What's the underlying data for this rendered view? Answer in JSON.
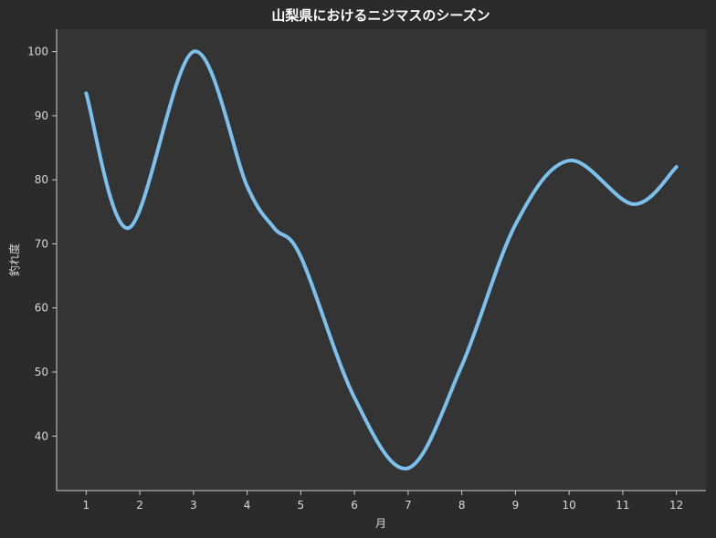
{
  "colors": {
    "page_background": "#2b2b2b",
    "plot_background": "#343434",
    "line": "#7cc1ee",
    "text": "#d8d8d8",
    "title": "#ffffff",
    "axis": "#cfcfcf"
  },
  "chart_data": {
    "type": "line",
    "title": "山梨県におけるニジマスのシーズン",
    "xlabel": "月",
    "ylabel": "釣れ度",
    "x_ticks": [
      "1",
      "2",
      "3",
      "4",
      "5",
      "6",
      "7",
      "8",
      "9",
      "10",
      "11",
      "12"
    ],
    "y_ticks": [
      "40",
      "50",
      "60",
      "70",
      "80",
      "90",
      "100"
    ],
    "xlim": [
      0.45,
      12.55
    ],
    "ylim": [
      31.5,
      103.5
    ],
    "grid": false,
    "legend": "none",
    "smooth": true,
    "series": [
      {
        "points": [
          [
            1,
            93.5
          ],
          [
            1.8,
            72.5
          ],
          [
            3,
            100
          ],
          [
            4,
            79
          ],
          [
            4.5,
            72.5
          ],
          [
            5,
            68
          ],
          [
            6,
            46
          ],
          [
            7,
            35
          ],
          [
            8,
            51
          ],
          [
            9,
            73
          ],
          [
            10,
            83
          ],
          [
            11.2,
            76.2
          ],
          [
            12,
            82
          ]
        ]
      }
    ]
  }
}
